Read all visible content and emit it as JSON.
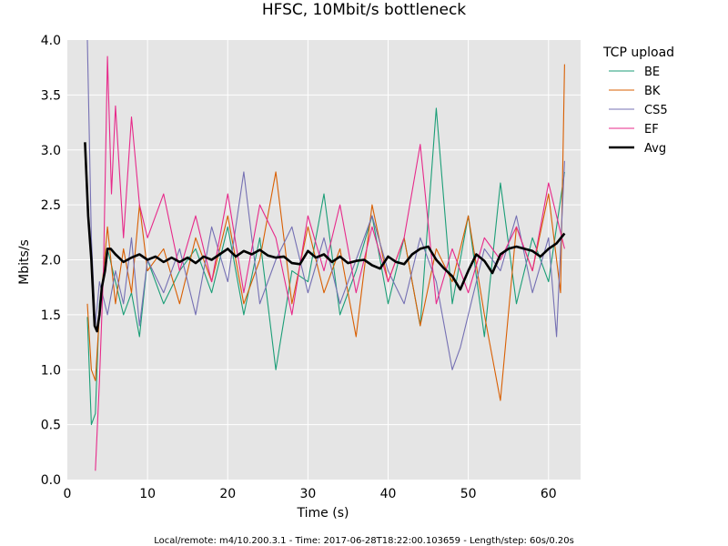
{
  "chart_data": {
    "type": "line",
    "title": "HFSC, 10Mbit/s bottleneck",
    "xlabel": "Time (s)",
    "ylabel": "Mbits/s",
    "xlim": [
      0,
      64
    ],
    "ylim": [
      0,
      4.0
    ],
    "xticks": [
      0,
      10,
      20,
      30,
      40,
      50,
      60
    ],
    "yticks": [
      "0.0",
      "0.5",
      "1.0",
      "1.5",
      "2.0",
      "2.5",
      "3.0",
      "3.5",
      "4.0"
    ],
    "grid": true,
    "legend": {
      "title": "TCP upload",
      "placement": "outside-right"
    },
    "series": [
      {
        "name": "BE",
        "color": "#1b9e77",
        "x": [
          2.5,
          3,
          3.5,
          4,
          5,
          6,
          7,
          8,
          9,
          10,
          12,
          14,
          16,
          18,
          20,
          22,
          24,
          26,
          28,
          30,
          32,
          34,
          36,
          38,
          40,
          42,
          44,
          46,
          48,
          50,
          52,
          54,
          56,
          58,
          60,
          62
        ],
        "y": [
          1.48,
          0.5,
          0.6,
          1.6,
          2.1,
          1.8,
          1.5,
          1.7,
          1.3,
          2.0,
          1.6,
          1.9,
          2.1,
          1.7,
          2.3,
          1.5,
          2.2,
          1.0,
          1.9,
          1.8,
          2.6,
          1.5,
          1.9,
          2.4,
          1.6,
          2.2,
          1.4,
          3.38,
          1.6,
          2.4,
          1.3,
          2.7,
          1.6,
          2.2,
          1.8,
          2.8
        ]
      },
      {
        "name": "BK",
        "color": "#d95f02",
        "x": [
          2.5,
          3,
          3.5,
          4,
          5,
          6,
          7,
          8,
          9,
          10,
          12,
          14,
          16,
          18,
          20,
          22,
          24,
          26,
          28,
          30,
          32,
          34,
          36,
          38,
          40,
          42,
          44,
          46,
          48,
          50,
          52,
          54,
          56,
          58,
          60,
          61.5,
          62
        ],
        "y": [
          1.6,
          1.0,
          0.9,
          1.5,
          2.3,
          1.6,
          2.1,
          1.7,
          2.5,
          1.9,
          2.1,
          1.6,
          2.2,
          1.8,
          2.4,
          1.6,
          2.0,
          2.8,
          1.6,
          2.3,
          1.7,
          2.1,
          1.3,
          2.5,
          1.8,
          2.2,
          1.4,
          2.1,
          1.8,
          2.4,
          1.5,
          0.72,
          2.3,
          1.9,
          2.6,
          1.7,
          3.78
        ]
      },
      {
        "name": "CS5",
        "color": "#7570b3",
        "x": [
          2.5,
          3,
          3.5,
          4,
          5,
          6,
          7,
          8,
          9,
          10,
          12,
          14,
          16,
          18,
          20,
          22,
          24,
          26,
          28,
          30,
          32,
          34,
          36,
          38,
          40,
          42,
          44,
          46,
          48,
          49,
          50,
          52,
          54,
          56,
          58,
          60,
          61,
          62
        ],
        "y": [
          4.0,
          2.2,
          1.4,
          1.8,
          1.5,
          1.9,
          1.6,
          2.2,
          1.4,
          2.0,
          1.7,
          2.1,
          1.5,
          2.3,
          1.8,
          2.8,
          1.6,
          2.0,
          2.3,
          1.7,
          2.2,
          1.6,
          2.0,
          2.4,
          1.9,
          1.6,
          2.2,
          1.8,
          1.0,
          1.2,
          1.5,
          2.1,
          1.9,
          2.4,
          1.7,
          2.2,
          1.3,
          2.9
        ]
      },
      {
        "name": "EF",
        "color": "#e7298a",
        "x": [
          3.5,
          4,
          4.5,
          5,
          5.5,
          6,
          7,
          8,
          9,
          10,
          12,
          14,
          16,
          18,
          20,
          22,
          24,
          26,
          28,
          30,
          32,
          34,
          36,
          38,
          40,
          42,
          44,
          46,
          48,
          50,
          52,
          54,
          56,
          58,
          60,
          62
        ],
        "y": [
          0.08,
          0.9,
          1.9,
          3.85,
          2.6,
          3.4,
          2.2,
          3.3,
          2.5,
          2.2,
          2.6,
          1.9,
          2.4,
          1.8,
          2.6,
          1.7,
          2.5,
          2.2,
          1.5,
          2.4,
          1.9,
          2.5,
          1.7,
          2.3,
          1.8,
          2.2,
          3.05,
          1.6,
          2.1,
          1.7,
          2.2,
          2.0,
          2.3,
          1.9,
          2.7,
          2.1
        ]
      },
      {
        "name": "Avg",
        "color": "#000000",
        "x": [
          2.2,
          2.6,
          3,
          3.4,
          3.7,
          4,
          4.3,
          4.7,
          5,
          5.4,
          6,
          7,
          8,
          9,
          10,
          11,
          12,
          13,
          14,
          15,
          16,
          17,
          18,
          19,
          20,
          21,
          22,
          23,
          24,
          25,
          26,
          27,
          28,
          29,
          30,
          31,
          32,
          33,
          34,
          35,
          36,
          37,
          38,
          39,
          40,
          41,
          42,
          43,
          44,
          45,
          46,
          47,
          48,
          49,
          50,
          51,
          52,
          53,
          54,
          55,
          56,
          57,
          58,
          59,
          60,
          61,
          62
        ],
        "y": [
          3.07,
          2.4,
          2.0,
          1.4,
          1.35,
          1.5,
          1.75,
          1.9,
          2.1,
          2.1,
          2.05,
          1.98,
          2.02,
          2.05,
          2.0,
          2.03,
          1.98,
          2.02,
          1.98,
          2.02,
          1.97,
          2.03,
          2.0,
          2.05,
          2.1,
          2.03,
          2.08,
          2.05,
          2.09,
          2.04,
          2.02,
          2.03,
          1.97,
          1.96,
          2.08,
          2.02,
          2.05,
          1.98,
          2.03,
          1.97,
          1.99,
          2.0,
          1.95,
          1.92,
          2.03,
          1.98,
          1.96,
          2.05,
          2.1,
          2.12,
          2.0,
          1.92,
          1.85,
          1.73,
          1.9,
          2.05,
          1.99,
          1.88,
          2.05,
          2.1,
          2.12,
          2.1,
          2.08,
          2.03,
          2.1,
          2.15,
          2.24
        ]
      }
    ]
  },
  "footer": {
    "caption": "Local/remote: m4/10.200.3.1 - Time: 2017-06-28T18:22:00.103659 - Length/step: 60s/0.20s"
  }
}
